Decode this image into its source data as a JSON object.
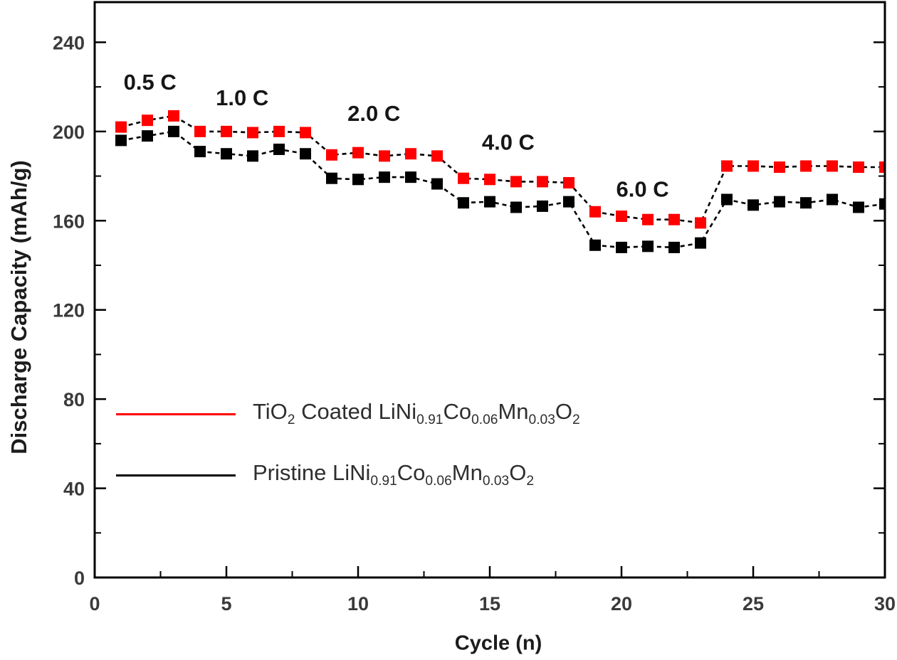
{
  "figure": {
    "background": "#ffffff",
    "text_color": "#1c1c1c",
    "tick_label_color": "#3a3a3a"
  },
  "chart_data": {
    "type": "line",
    "title": "",
    "xlabel": "Cycle (n)",
    "ylabel": "Discharge Capacity (mAh/g)",
    "xlim": [
      0,
      30
    ],
    "ylim": [
      0,
      258
    ],
    "grid": false,
    "legend_position": "inside-lower-left",
    "x_major_ticks": [
      0,
      5,
      10,
      15,
      20,
      25,
      30
    ],
    "x_minor_ticks": [
      2.5,
      7.5,
      12.5,
      17.5,
      22.5,
      27.5
    ],
    "y_major_ticks": [
      0,
      40,
      80,
      120,
      160,
      200,
      240
    ],
    "y_minor_ticks": [
      20,
      60,
      100,
      140,
      180,
      220
    ],
    "x": [
      1,
      2,
      3,
      4,
      5,
      6,
      7,
      8,
      9,
      10,
      11,
      12,
      13,
      14,
      15,
      16,
      17,
      18,
      19,
      20,
      21,
      22,
      23,
      24,
      25,
      26,
      27,
      28,
      29,
      30
    ],
    "series": [
      {
        "name": "TiO2 Coated LiNi0.91Co0.06Mn0.03O2",
        "marker": "square",
        "marker_color": "#fe0000",
        "line_color": "#000000",
        "line_style": "dashed",
        "values": [
          202,
          205,
          207,
          200,
          200,
          199.5,
          200,
          199.5,
          189.5,
          190.5,
          189,
          190,
          189,
          179,
          178.5,
          177.5,
          177.5,
          177,
          164,
          162,
          160.5,
          160.5,
          159,
          184.5,
          184.5,
          184,
          184.5,
          184.5,
          184,
          184
        ]
      },
      {
        "name": "Pristine LiNi0.91Co0.06Mn0.03O2",
        "marker": "square",
        "marker_color": "#000000",
        "line_color": "#000000",
        "line_style": "dashed",
        "values": [
          196,
          198,
          200,
          191,
          190,
          189,
          192,
          190,
          179,
          178.5,
          179.5,
          179.5,
          176.5,
          168,
          168.5,
          166,
          166.5,
          168.5,
          149,
          148,
          148.5,
          148,
          150,
          169.5,
          167,
          168.5,
          168,
          169.5,
          166,
          167.5
        ]
      }
    ],
    "annotations": [
      {
        "label": "0.5 C",
        "x": 2.1,
        "y": 222
      },
      {
        "label": "1.0 C",
        "x": 5.6,
        "y": 215
      },
      {
        "label": "2.0 C",
        "x": 10.6,
        "y": 208
      },
      {
        "label": "4.0 C",
        "x": 15.7,
        "y": 195
      },
      {
        "label": "6.0 C",
        "x": 20.8,
        "y": 174
      }
    ],
    "legend": {
      "entries": [
        {
          "color": "#fe0000",
          "segments": [
            {
              "t": "TiO"
            },
            {
              "s": "2"
            },
            {
              "t": " Coated LiNi"
            },
            {
              "s": "0.91"
            },
            {
              "t": "Co"
            },
            {
              "s": "0.06"
            },
            {
              "t": "Mn"
            },
            {
              "s": "0.03"
            },
            {
              "t": "O"
            },
            {
              "s": "2"
            }
          ]
        },
        {
          "color": "#000000",
          "segments": [
            {
              "t": "Pristine LiNi"
            },
            {
              "s": "0.91"
            },
            {
              "t": "Co"
            },
            {
              "s": "0.06"
            },
            {
              "t": "Mn"
            },
            {
              "s": "0.03"
            },
            {
              "t": "O"
            },
            {
              "s": "2"
            }
          ]
        }
      ]
    }
  }
}
